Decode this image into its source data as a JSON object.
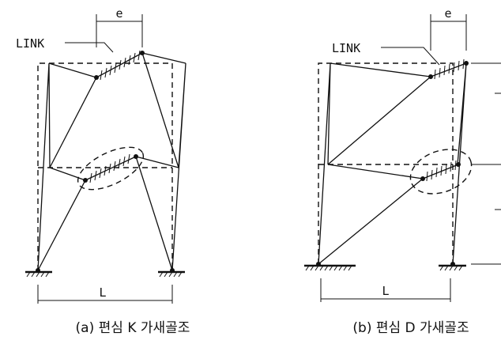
{
  "diagram_a": {
    "link_label": "LINK",
    "e_label": "e",
    "span_label": "L",
    "caption": "(a) 편심 K 가새골조"
  },
  "diagram_b": {
    "link_label": "LINK",
    "e_label": "e",
    "span_label": "L",
    "caption": "(b) 편심 D 가새골조"
  }
}
